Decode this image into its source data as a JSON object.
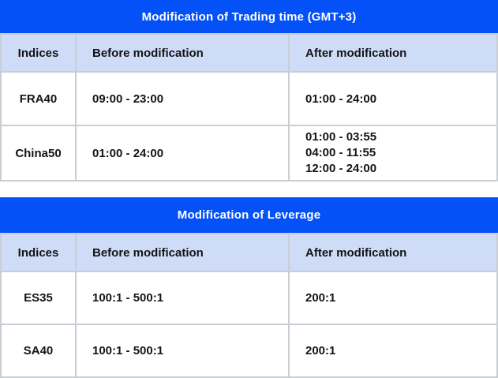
{
  "colors": {
    "banner": "#0351f7",
    "header_row": "#cedcf8",
    "grid_border": "#c9ced4",
    "title_text": "#ffffff",
    "body_text": "#141414",
    "page_bg": "#ffffff"
  },
  "tables": [
    {
      "title": "Modification of Trading time (GMT+3)",
      "columns": {
        "indices": "Indices",
        "before": "Before modification",
        "after": "After modification"
      },
      "rows": [
        {
          "index": "FRA40",
          "before": "09:00 - 23:00",
          "after": "01:00 - 24:00"
        },
        {
          "index": "China50",
          "before": "01:00 - 24:00",
          "after": [
            "01:00 - 03:55",
            "04:00 - 11:55",
            "12:00 - 24:00"
          ]
        }
      ]
    },
    {
      "title": "Modification of Leverage",
      "columns": {
        "indices": "Indices",
        "before": "Before modification",
        "after": "After modification"
      },
      "rows": [
        {
          "index": "ES35",
          "before": "100:1 - 500:1",
          "after": "200:1"
        },
        {
          "index": "SA40",
          "before": "100:1 - 500:1",
          "after": "200:1"
        }
      ]
    }
  ]
}
